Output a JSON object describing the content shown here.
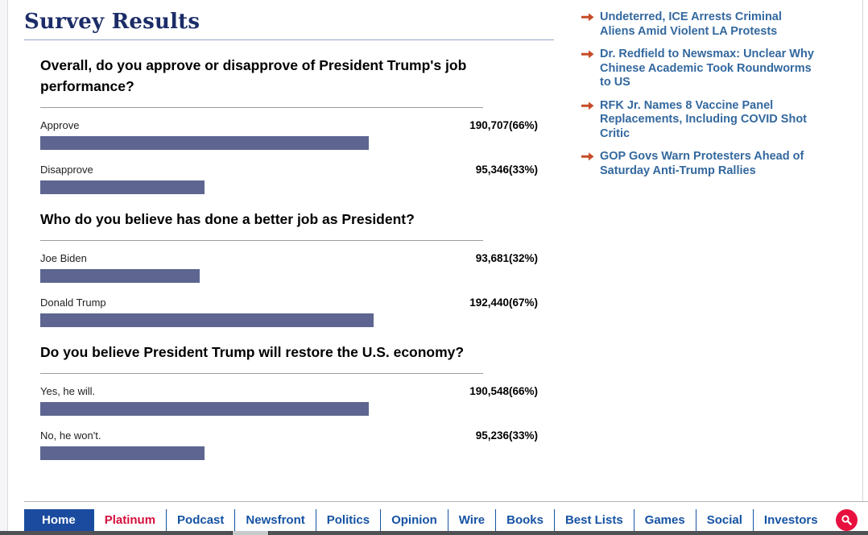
{
  "page": {
    "title": "Survey Results"
  },
  "chart_data": [
    {
      "type": "bar",
      "orientation": "horizontal",
      "title": "Overall, do you approve or disapprove of President Trump's job performance?",
      "categories": [
        "Approve",
        "Disapprove"
      ],
      "values": [
        190707,
        95346
      ],
      "pct": [
        66,
        33
      ],
      "labels": [
        "190,707(66%)",
        "95,346(33%)"
      ],
      "bar_color": "#5d6590",
      "axis_range_pct": [
        0,
        100
      ],
      "bar_length_encodes": "percentage"
    },
    {
      "type": "bar",
      "orientation": "horizontal",
      "title": "Who do you believe has done a better job as President?",
      "categories": [
        "Joe Biden",
        "Donald Trump"
      ],
      "values": [
        93681,
        192440
      ],
      "pct": [
        32,
        67
      ],
      "labels": [
        "93,681(32%)",
        "192,440(67%)"
      ],
      "bar_color": "#5d6590",
      "axis_range_pct": [
        0,
        100
      ],
      "bar_length_encodes": "percentage"
    },
    {
      "type": "bar",
      "orientation": "horizontal",
      "title": "Do you believe President Trump will restore the U.S. economy?",
      "categories": [
        "Yes, he will.",
        "No, he won't."
      ],
      "values": [
        190548,
        95236
      ],
      "pct": [
        66,
        33
      ],
      "labels": [
        "190,548(66%)",
        "95,236(33%)"
      ],
      "bar_color": "#5d6590",
      "axis_range_pct": [
        0,
        100
      ],
      "bar_length_encodes": "percentage"
    }
  ],
  "sidebar": {
    "headlines": [
      "Undeterred, ICE Arrests Criminal Aliens Amid Violent LA Protests",
      "Dr. Redfield to Newsmax: Unclear Why Chinese Academic Took Roundworms to US",
      "RFK Jr. Names 8 Vaccine Panel Replacements, Including COVID Shot Critic",
      "GOP Govs Warn Protesters Ahead of Saturday Anti-Trump Rallies"
    ]
  },
  "nav": {
    "items": [
      {
        "label": "Home",
        "active": true
      },
      {
        "label": "Platinum",
        "variant": "platinum"
      },
      {
        "label": "Podcast"
      },
      {
        "label": "Newsfront"
      },
      {
        "label": "Politics"
      },
      {
        "label": "Opinion"
      },
      {
        "label": "Wire"
      },
      {
        "label": "Books"
      },
      {
        "label": "Best Lists"
      },
      {
        "label": "Games"
      },
      {
        "label": "Social"
      },
      {
        "label": "Investors"
      }
    ],
    "search_icon": "search-icon"
  },
  "colors": {
    "title_navy": "#1b2c67",
    "bar": "#5d6590",
    "headline_link": "#33689e",
    "headline_arrow": "#c64b26",
    "nav_blue": "#1553a3",
    "nav_active_bg": "#1a4b9e",
    "platinum_red": "#d60f3c",
    "search_circle": "#e8103f"
  }
}
